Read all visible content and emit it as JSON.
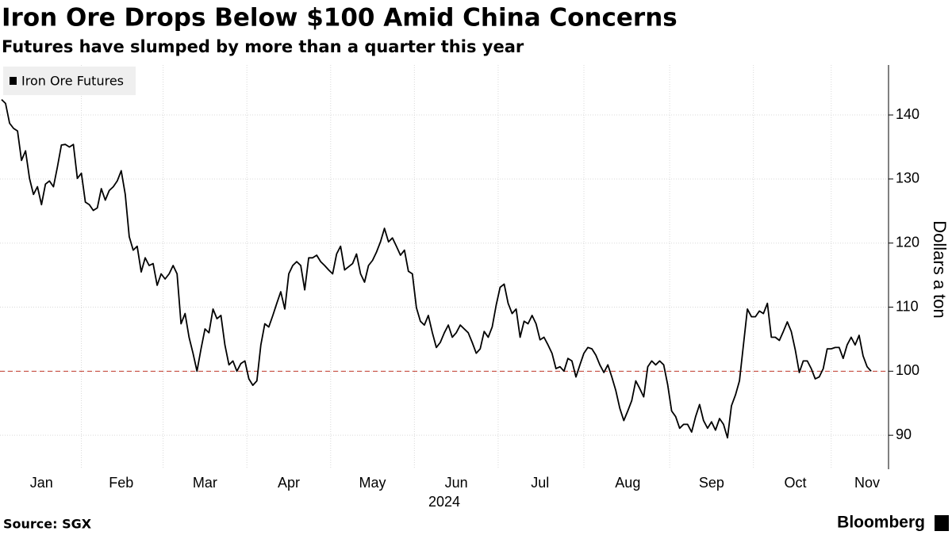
{
  "chart_data": {
    "type": "line",
    "title": "Iron Ore Drops Below $100 Amid China Concerns",
    "subtitle": "Futures have slumped by more than a quarter this year",
    "ylabel": "Dollars a ton",
    "xlabel": "2024",
    "source": "Source: SGX",
    "brand": "Bloomberg",
    "ylim": [
      84.7,
      147.8
    ],
    "yticks": [
      90,
      100,
      110,
      120,
      130,
      140
    ],
    "grid": true,
    "legend": "top-left",
    "reference_line": {
      "value": 100,
      "color": "#c0392b"
    },
    "categories": [
      null,
      null,
      null,
      null,
      null,
      null,
      null,
      null,
      null,
      null,
      "Jan",
      null,
      null,
      null,
      null,
      null,
      null,
      null,
      null,
      null,
      null,
      null,
      null,
      null,
      null,
      null,
      null,
      null,
      null,
      null,
      "Feb",
      null,
      null,
      null,
      null,
      null,
      null,
      null,
      null,
      null,
      null,
      null,
      null,
      null,
      null,
      null,
      null,
      null,
      null,
      null,
      null,
      "Mar",
      null,
      null,
      null,
      null,
      null,
      null,
      null,
      null,
      null,
      null,
      null,
      null,
      null,
      null,
      null,
      null,
      null,
      null,
      null,
      null,
      "Apr",
      null,
      null,
      null,
      null,
      null,
      null,
      null,
      null,
      null,
      null,
      null,
      null,
      null,
      null,
      null,
      null,
      null,
      null,
      null,
      null,
      "May",
      null,
      null,
      null,
      null,
      null,
      null,
      null,
      null,
      null,
      null,
      null,
      null,
      null,
      null,
      null,
      null,
      null,
      null,
      null,
      null,
      "Jun",
      null,
      null,
      null,
      null,
      null,
      null,
      null,
      null,
      null,
      null,
      null,
      null,
      null,
      null,
      null,
      null,
      null,
      null,
      null,
      null,
      "Jul",
      null,
      null,
      null,
      null,
      null,
      null,
      null,
      null,
      null,
      null,
      null,
      null,
      null,
      null,
      null,
      null,
      null,
      null,
      null,
      null,
      null,
      "Aug",
      null,
      null,
      null,
      null,
      null,
      null,
      null,
      null,
      null,
      null,
      null,
      null,
      null,
      null,
      null,
      null,
      null,
      null,
      null,
      null,
      "Sep",
      null,
      null,
      null,
      null,
      null,
      null,
      null,
      null,
      null,
      null,
      null,
      null,
      null,
      null,
      null,
      null,
      null,
      null,
      null,
      null,
      "Oct",
      null,
      null,
      null,
      null,
      null,
      null,
      null,
      null,
      null,
      null,
      null,
      null,
      null,
      null,
      null,
      null,
      null,
      "Nov",
      null
    ],
    "series": [
      {
        "name": "Iron Ore Futures",
        "color": "#000000",
        "values": [
          142.4,
          141.8,
          138.7,
          137.9,
          137.5,
          132.9,
          134.4,
          130.1,
          127.6,
          128.8,
          126.0,
          129.2,
          129.7,
          128.8,
          131.9,
          135.3,
          135.4,
          135.0,
          135.4,
          130.1,
          130.9,
          126.4,
          126.0,
          125.1,
          125.5,
          128.5,
          126.7,
          128.2,
          128.8,
          129.7,
          131.3,
          127.6,
          121.0,
          118.9,
          119.5,
          115.5,
          117.7,
          116.5,
          116.8,
          113.4,
          115.2,
          114.4,
          115.2,
          116.5,
          115.2,
          107.4,
          109.0,
          105.3,
          102.8,
          100.0,
          103.5,
          106.6,
          106.0,
          109.7,
          108.2,
          108.7,
          104.1,
          101.0,
          101.6,
          100.0,
          101.2,
          101.6,
          98.8,
          97.8,
          98.5,
          104.1,
          107.4,
          106.9,
          108.7,
          110.6,
          112.4,
          109.7,
          115.2,
          116.5,
          117.1,
          116.5,
          112.7,
          117.7,
          117.7,
          118.1,
          117.1,
          116.5,
          115.8,
          115.2,
          118.3,
          119.5,
          115.8,
          116.3,
          116.8,
          118.3,
          115.2,
          113.9,
          116.5,
          117.3,
          118.6,
          120.2,
          122.3,
          120.2,
          120.8,
          119.5,
          118.1,
          118.9,
          115.6,
          115.2,
          109.9,
          107.8,
          107.2,
          108.7,
          106.0,
          103.7,
          104.5,
          106.0,
          107.2,
          105.3,
          106.0,
          107.2,
          106.6,
          106.0,
          104.5,
          102.8,
          103.5,
          106.2,
          105.3,
          106.9,
          110.3,
          113.1,
          113.6,
          110.6,
          109.0,
          109.7,
          105.3,
          107.8,
          107.4,
          108.7,
          107.4,
          104.9,
          105.3,
          104.1,
          102.8,
          100.4,
          100.7,
          100.0,
          102.0,
          101.6,
          99.1,
          101.0,
          102.8,
          103.7,
          103.5,
          102.5,
          101.0,
          99.8,
          101.0,
          99.1,
          97.0,
          94.2,
          92.3,
          93.8,
          95.4,
          98.5,
          97.3,
          96.0,
          100.7,
          101.6,
          101.0,
          101.6,
          101.0,
          97.9,
          93.8,
          92.9,
          91.1,
          91.7,
          91.7,
          90.5,
          92.9,
          94.8,
          92.3,
          91.1,
          92.1,
          90.8,
          92.6,
          91.7,
          89.6,
          94.6,
          96.3,
          98.5,
          104.1,
          109.7,
          108.5,
          108.5,
          109.4,
          109.0,
          110.6,
          105.3,
          105.3,
          104.8,
          106.2,
          107.7,
          106.2,
          103.3,
          99.8,
          101.6,
          101.6,
          100.4,
          98.8,
          99.1,
          100.4,
          103.5,
          103.5,
          103.7,
          103.7,
          102.0,
          104.1,
          105.3,
          104.1,
          105.6,
          102.4,
          100.7,
          100.0
        ]
      }
    ]
  }
}
